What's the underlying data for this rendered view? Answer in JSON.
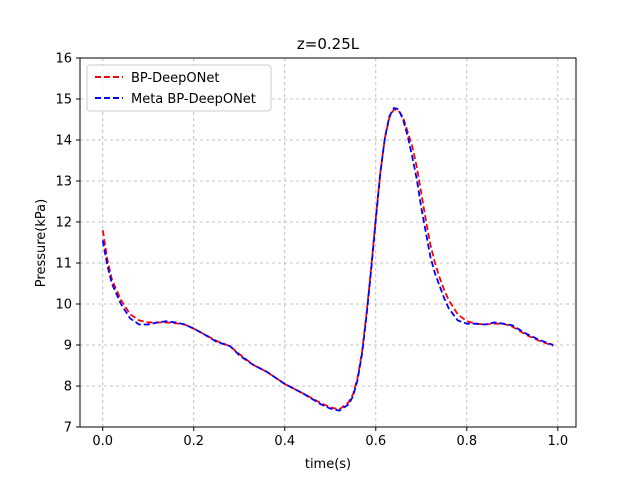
{
  "chart_data": {
    "type": "line",
    "title": "z=0.25L",
    "xlabel": "time(s)",
    "ylabel": "Pressure(kPa)",
    "xlim": [
      -0.05,
      1.04
    ],
    "ylim": [
      7,
      16
    ],
    "xticks": [
      0.0,
      0.2,
      0.4,
      0.6,
      0.8,
      1.0
    ],
    "xtick_labels": [
      "0.0",
      "0.2",
      "0.4",
      "0.6",
      "0.8",
      "1.0"
    ],
    "yticks": [
      7,
      8,
      9,
      10,
      11,
      12,
      13,
      14,
      15,
      16
    ],
    "ytick_labels": [
      "7",
      "8",
      "9",
      "10",
      "11",
      "12",
      "13",
      "14",
      "15",
      "16"
    ],
    "grid": true,
    "legend_position": "upper-left",
    "series": [
      {
        "name": "BP-DeepONet",
        "color": "#ff0000",
        "linestyle": "dashed",
        "x": [
          0.0,
          0.01,
          0.02,
          0.04,
          0.06,
          0.08,
          0.1,
          0.12,
          0.14,
          0.16,
          0.18,
          0.2,
          0.22,
          0.25,
          0.28,
          0.3,
          0.33,
          0.36,
          0.4,
          0.44,
          0.48,
          0.5,
          0.52,
          0.54,
          0.55,
          0.56,
          0.57,
          0.58,
          0.59,
          0.6,
          0.61,
          0.62,
          0.63,
          0.64,
          0.65,
          0.66,
          0.67,
          0.68,
          0.69,
          0.7,
          0.71,
          0.72,
          0.73,
          0.74,
          0.75,
          0.76,
          0.78,
          0.8,
          0.82,
          0.84,
          0.86,
          0.88,
          0.9,
          0.93,
          0.96,
          0.99
        ],
        "y": [
          11.8,
          11.1,
          10.6,
          10.1,
          9.75,
          9.6,
          9.55,
          9.55,
          9.55,
          9.53,
          9.5,
          9.4,
          9.28,
          9.1,
          8.97,
          8.78,
          8.52,
          8.35,
          8.05,
          7.82,
          7.58,
          7.48,
          7.43,
          7.6,
          7.8,
          8.2,
          8.85,
          9.8,
          10.9,
          12.1,
          13.2,
          14.05,
          14.55,
          14.75,
          14.72,
          14.55,
          14.2,
          13.85,
          13.35,
          12.7,
          12.05,
          11.45,
          11.0,
          10.65,
          10.35,
          10.1,
          9.75,
          9.58,
          9.52,
          9.5,
          9.52,
          9.52,
          9.45,
          9.25,
          9.1,
          8.98
        ]
      },
      {
        "name": "Meta BP-DeepONet",
        "color": "#0000ff",
        "linestyle": "dashed",
        "x": [
          0.0,
          0.01,
          0.02,
          0.04,
          0.06,
          0.08,
          0.1,
          0.12,
          0.14,
          0.16,
          0.18,
          0.2,
          0.22,
          0.25,
          0.28,
          0.3,
          0.33,
          0.36,
          0.4,
          0.44,
          0.48,
          0.5,
          0.52,
          0.54,
          0.55,
          0.56,
          0.57,
          0.58,
          0.59,
          0.6,
          0.61,
          0.62,
          0.63,
          0.64,
          0.65,
          0.66,
          0.67,
          0.68,
          0.69,
          0.7,
          0.71,
          0.72,
          0.73,
          0.74,
          0.75,
          0.76,
          0.78,
          0.8,
          0.82,
          0.84,
          0.86,
          0.88,
          0.9,
          0.93,
          0.96,
          0.99
        ],
        "y": [
          11.55,
          10.95,
          10.5,
          10.0,
          9.65,
          9.5,
          9.5,
          9.55,
          9.58,
          9.55,
          9.5,
          9.4,
          9.28,
          9.08,
          8.97,
          8.75,
          8.52,
          8.35,
          8.05,
          7.82,
          7.55,
          7.45,
          7.4,
          7.55,
          7.75,
          8.15,
          8.8,
          9.75,
          10.85,
          12.05,
          13.2,
          14.05,
          14.58,
          14.78,
          14.75,
          14.5,
          14.1,
          13.6,
          13.05,
          12.35,
          11.75,
          11.15,
          10.75,
          10.45,
          10.15,
          9.9,
          9.6,
          9.52,
          9.52,
          9.5,
          9.55,
          9.52,
          9.48,
          9.28,
          9.12,
          9.0
        ]
      }
    ]
  }
}
